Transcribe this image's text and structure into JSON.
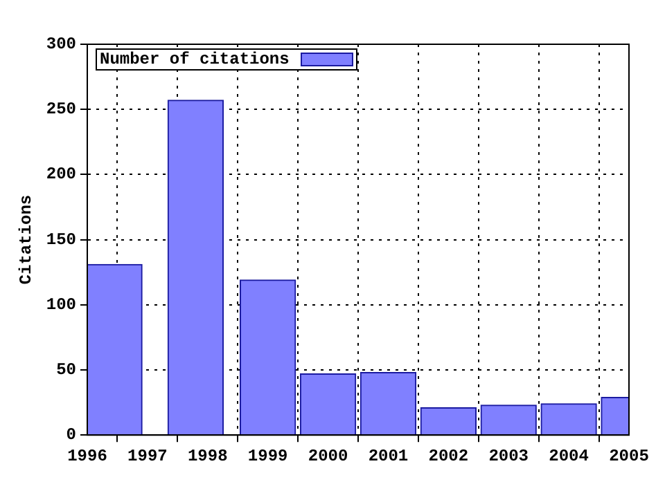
{
  "chart_data": {
    "type": "bar",
    "ylabel": "Citations",
    "x": [
      1996.45,
      1997.8,
      1999,
      2000,
      2001,
      2002,
      2003,
      2004,
      2005
    ],
    "series": [
      {
        "name": "Number of citations",
        "color": "#8080ff",
        "values": [
          131,
          257,
          119,
          47,
          48,
          21,
          23,
          24,
          29
        ]
      }
    ],
    "xlim": [
      1996,
      2005
    ],
    "xticks": [
      1996,
      1997,
      1998,
      1999,
      2000,
      2001,
      2002,
      2003,
      2004,
      2005
    ],
    "ylim": [
      0,
      300
    ],
    "yticks": [
      0,
      50,
      100,
      150,
      200,
      250,
      300
    ],
    "grid": true,
    "legend": "top left"
  }
}
